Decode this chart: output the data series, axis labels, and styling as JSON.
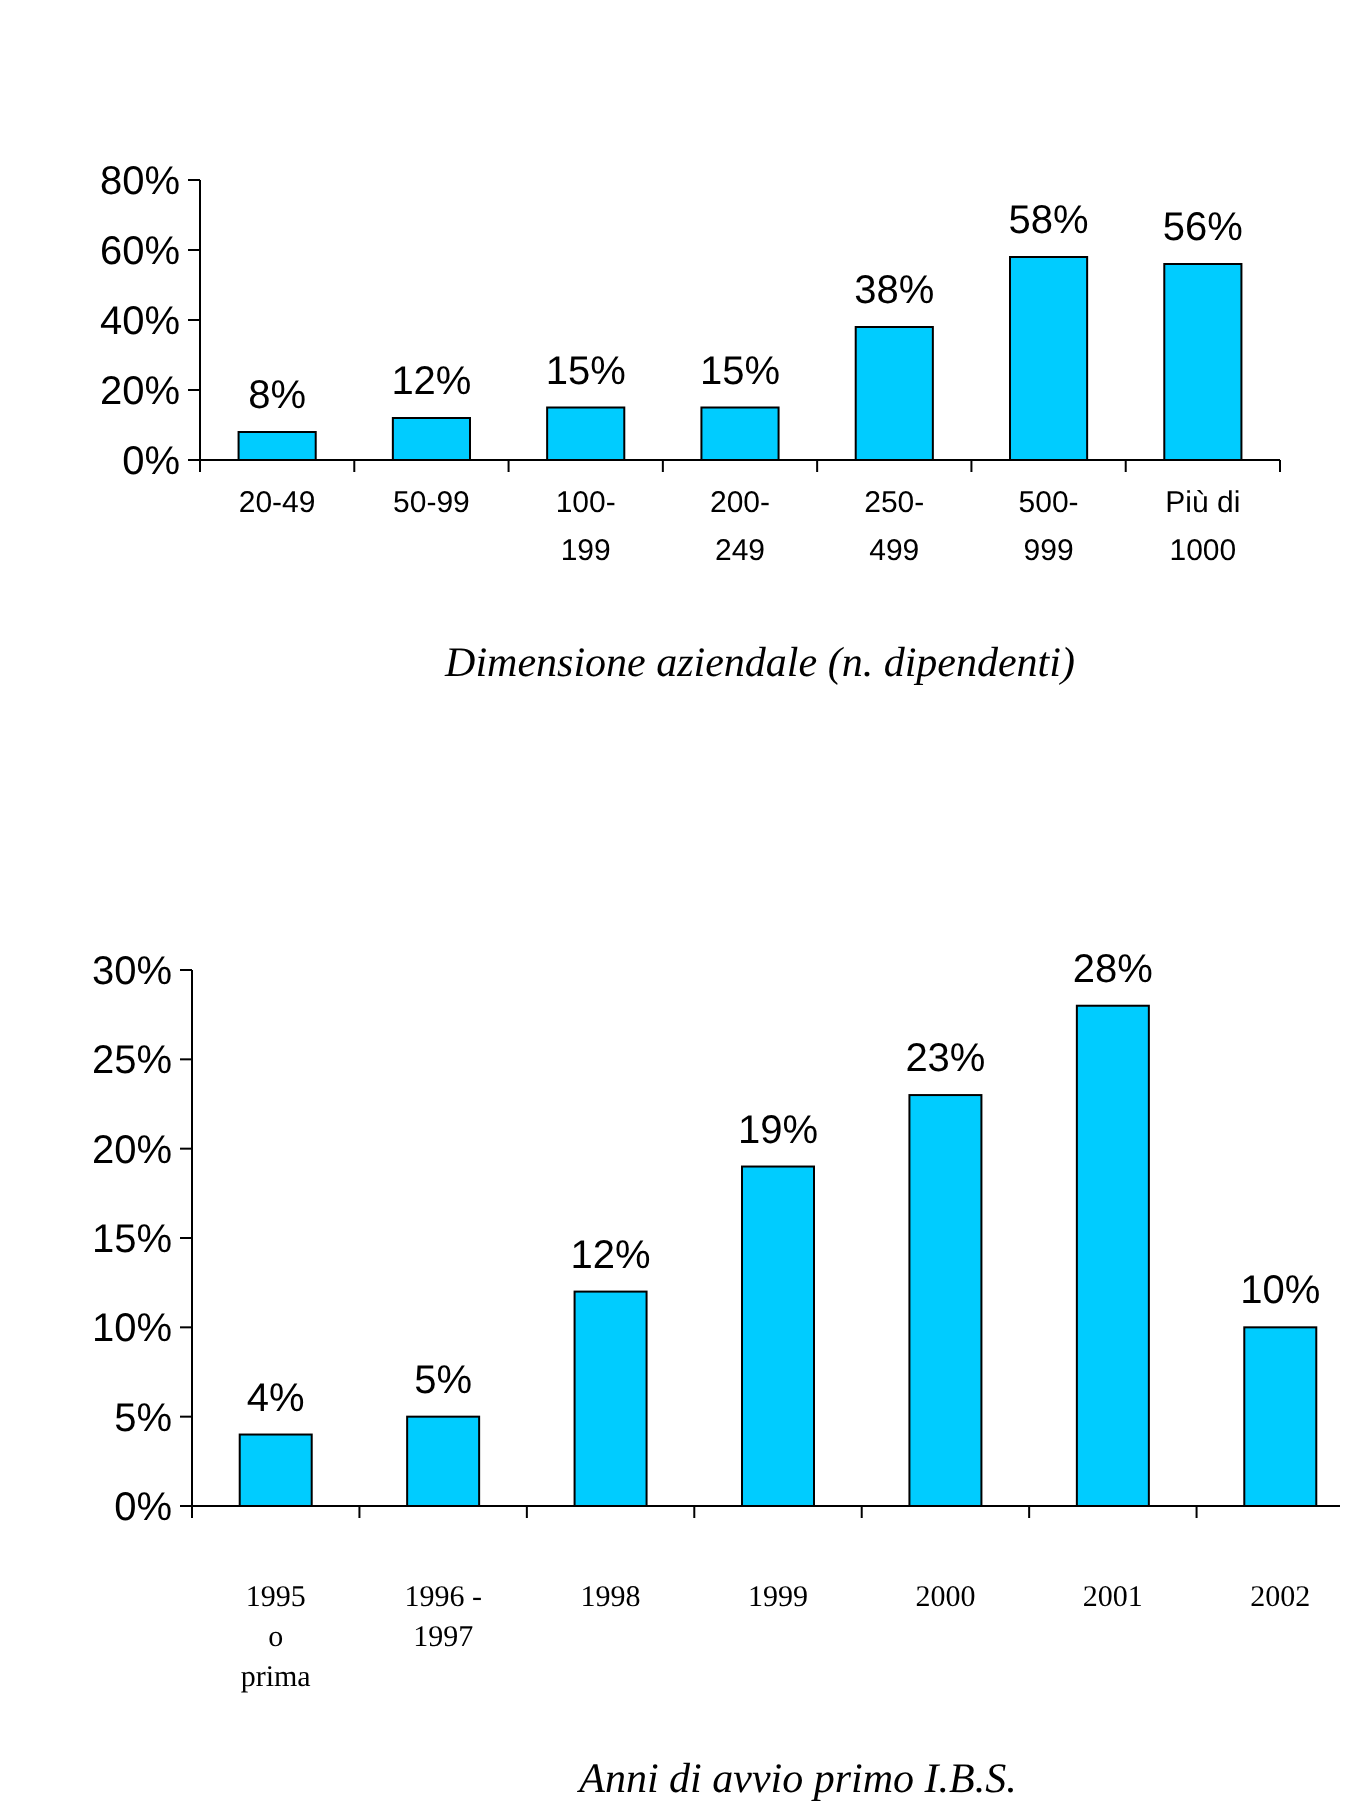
{
  "chart_data": [
    {
      "type": "bar",
      "xlabel": "Dimensione aziendale (n. dipendenti)",
      "categories": [
        "20-49",
        "50-99",
        "100-\n199",
        "200-\n249",
        "250-\n499",
        "500-\n999",
        "Più di\n1000"
      ],
      "values": [
        8,
        12,
        15,
        15,
        38,
        58,
        56
      ],
      "value_labels": [
        "8%",
        "12%",
        "15%",
        "15%",
        "38%",
        "58%",
        "56%"
      ],
      "color": "#00ccff",
      "ylim": [
        0,
        80
      ],
      "yticks": [
        {
          "value": 0,
          "label": "0%"
        },
        {
          "value": 20,
          "label": "20%"
        },
        {
          "value": 40,
          "label": "40%"
        },
        {
          "value": 60,
          "label": "60%"
        },
        {
          "value": 80,
          "label": "80%"
        }
      ],
      "grid": false
    },
    {
      "type": "bar",
      "xlabel": "Anni di avvio primo I.B.S.",
      "categories": [
        "1995\no\nprima",
        "1996 -\n1997",
        "1998",
        "1999",
        "2000",
        "2001",
        "2002"
      ],
      "values": [
        4,
        5,
        12,
        19,
        23,
        28,
        10
      ],
      "value_labels": [
        "4%",
        "5%",
        "12%",
        "19%",
        "23%",
        "28%",
        "10%"
      ],
      "color": "#00ccff",
      "ylim": [
        0,
        30
      ],
      "yticks": [
        {
          "value": 0,
          "label": "0%"
        },
        {
          "value": 5,
          "label": "5%"
        },
        {
          "value": 10,
          "label": "10%"
        },
        {
          "value": 15,
          "label": "15%"
        },
        {
          "value": 20,
          "label": "20%"
        },
        {
          "value": 25,
          "label": "25%"
        },
        {
          "value": 30,
          "label": "30%"
        }
      ],
      "grid": false
    }
  ]
}
